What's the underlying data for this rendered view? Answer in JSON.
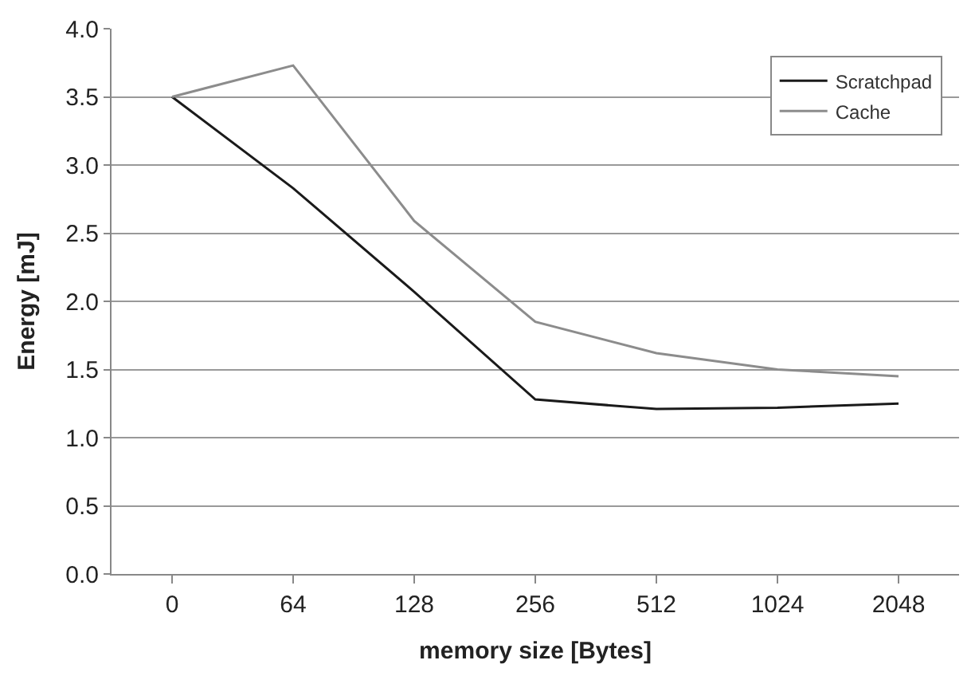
{
  "chart_data": {
    "type": "line",
    "xlabel": "memory size [Bytes]",
    "ylabel": "Energy [mJ]",
    "categories": [
      "0",
      "64",
      "128",
      "256",
      "512",
      "1024",
      "2048"
    ],
    "series": [
      {
        "name": "Scratchpad",
        "color": "#1a1a1a",
        "values": [
          3.5,
          2.83,
          2.07,
          1.28,
          1.21,
          1.22,
          1.25
        ]
      },
      {
        "name": "Cache",
        "color": "#8c8c8c",
        "values": [
          3.5,
          3.73,
          2.59,
          1.85,
          1.62,
          1.5,
          1.45
        ]
      }
    ],
    "ylim": [
      0,
      4
    ],
    "yticks": [
      {
        "value": 0,
        "label": "0.0"
      },
      {
        "value": 0.5,
        "label": "0.5"
      },
      {
        "value": 1,
        "label": "1.0"
      },
      {
        "value": 1.5,
        "label": "1.5"
      },
      {
        "value": 2,
        "label": "2.0"
      },
      {
        "value": 2.5,
        "label": "2.5"
      },
      {
        "value": 3,
        "label": "3.0"
      },
      {
        "value": 3.5,
        "label": "3.5"
      },
      {
        "value": 4,
        "label": "4.0"
      }
    ],
    "grid": "y",
    "legend": "top right",
    "line_style": "solid"
  }
}
